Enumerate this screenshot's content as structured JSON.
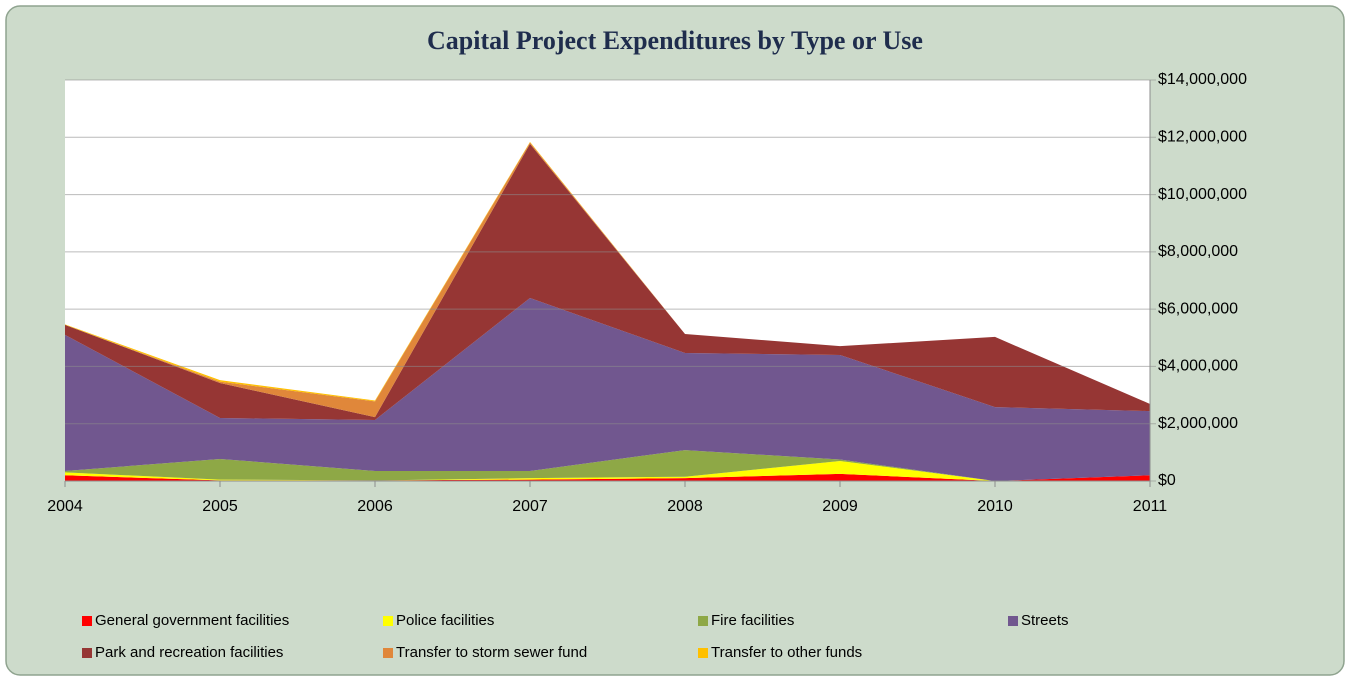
{
  "chart_data": {
    "type": "stacked_area",
    "title": "Capital Project Expenditures by Type or Use",
    "categories": [
      "2004",
      "2005",
      "2006",
      "2007",
      "2008",
      "2009",
      "2010",
      "2011"
    ],
    "series": [
      {
        "name": "General government facilities",
        "color": "#ff0000",
        "values": [
          200000,
          20000,
          20000,
          50000,
          100000,
          250000,
          0,
          200000
        ]
      },
      {
        "name": "Police facilities",
        "color": "#ffff00",
        "values": [
          100000,
          30000,
          0,
          50000,
          50000,
          450000,
          0,
          0
        ]
      },
      {
        "name": "Fire facilities",
        "color": "#8ea846",
        "values": [
          50000,
          720000,
          330000,
          250000,
          930000,
          50000,
          0,
          0
        ]
      },
      {
        "name": "Streets",
        "color": "#71578f",
        "values": [
          4750000,
          1430000,
          1780000,
          6040000,
          3390000,
          3650000,
          2580000,
          2240000
        ]
      },
      {
        "name": "Park and recreation facilities",
        "color": "#963634",
        "values": [
          350000,
          1220000,
          100000,
          5380000,
          660000,
          310000,
          2450000,
          250000
        ]
      },
      {
        "name": "Transfer to storm sewer fund",
        "color": "#e0873a",
        "values": [
          0,
          50000,
          550000,
          50000,
          0,
          0,
          0,
          0
        ]
      },
      {
        "name": "Transfer to other funds",
        "color": "#ffc000",
        "values": [
          20000,
          50000,
          30000,
          20000,
          0,
          0,
          0,
          0
        ]
      }
    ],
    "ylim": [
      0,
      14000000
    ],
    "yticks": [
      {
        "value": 0,
        "label": "$0"
      },
      {
        "value": 2000000,
        "label": "$2,000,000"
      },
      {
        "value": 4000000,
        "label": "$4,000,000"
      },
      {
        "value": 6000000,
        "label": "$6,000,000"
      },
      {
        "value": 8000000,
        "label": "$8,000,000"
      },
      {
        "value": 10000000,
        "label": "$10,000,000"
      },
      {
        "value": 12000000,
        "label": "$12,000,000"
      },
      {
        "value": 14000000,
        "label": "$14,000,000"
      }
    ],
    "grid": true
  }
}
